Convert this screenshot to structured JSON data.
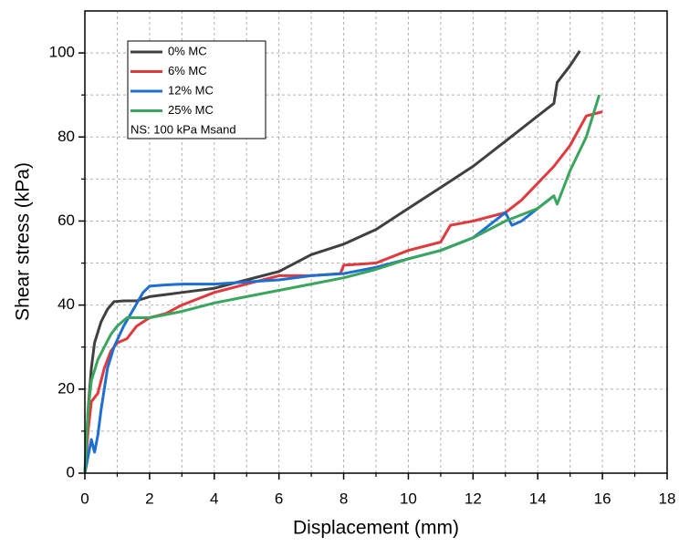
{
  "chart_data": {
    "type": "line",
    "xlabel": "Displacement (mm)",
    "ylabel": "Shear stress (kPa)",
    "xlim": [
      0,
      18
    ],
    "ylim": [
      0,
      110
    ],
    "xticks": [
      0,
      2,
      4,
      6,
      8,
      10,
      12,
      14,
      16,
      18
    ],
    "yticks": [
      0,
      20,
      40,
      60,
      80,
      100
    ],
    "xminorticks": [
      1,
      3,
      5,
      7,
      9,
      11,
      13,
      15,
      17
    ],
    "yminorticks": [
      10,
      30,
      50,
      70,
      90
    ],
    "grid": true,
    "legend": "upper left",
    "annotation": "NS: 100 kPa Msand",
    "series": [
      {
        "name": "0% MC",
        "color": "#404040",
        "x": [
          0,
          0.1,
          0.2,
          0.3,
          0.5,
          0.7,
          0.9,
          1.2,
          1.6,
          2,
          2.5,
          3,
          4,
          5,
          6,
          7,
          8,
          9,
          10,
          11,
          12,
          13,
          14,
          14.5,
          14.6,
          15,
          15.3
        ],
        "values": [
          0,
          15,
          25,
          31,
          36,
          39,
          40.8,
          41,
          41,
          42,
          42.5,
          43,
          44,
          46,
          48,
          52,
          54.5,
          58,
          63,
          68,
          73,
          79,
          85,
          88,
          93,
          97,
          100.5
        ]
      },
      {
        "name": "6% MC",
        "color": "#e0393e",
        "x": [
          0,
          0.1,
          0.2,
          0.4,
          0.6,
          0.8,
          1,
          1.3,
          1.6,
          1.8,
          2,
          2.5,
          3,
          4,
          5,
          6,
          7,
          7.9,
          8,
          9,
          10,
          11,
          11.3,
          12,
          13,
          13.5,
          14,
          14.5,
          15,
          15.5,
          16
        ],
        "values": [
          0,
          10,
          17,
          19,
          25,
          29,
          31,
          32,
          35,
          36,
          37,
          38,
          40,
          43,
          45,
          47,
          47,
          47.5,
          49.5,
          50,
          53,
          55,
          59,
          60,
          62,
          65,
          69,
          73,
          78,
          85,
          86
        ]
      },
      {
        "name": "12% MC",
        "color": "#1f6fd1",
        "x": [
          0,
          0.2,
          0.3,
          0.4,
          0.5,
          0.7,
          0.9,
          1.2,
          1.5,
          1.8,
          2,
          2.5,
          3,
          4,
          5,
          6,
          7,
          8,
          9,
          10,
          11,
          12,
          13,
          13.2,
          13.5,
          14,
          14.5
        ],
        "values": [
          0,
          8,
          5,
          9,
          15,
          25,
          30,
          35,
          39,
          43,
          44.5,
          44.8,
          45,
          45,
          45.5,
          46,
          47,
          47.5,
          49,
          51,
          53,
          56,
          62,
          59,
          60,
          63,
          66
        ]
      },
      {
        "name": "25% MC",
        "color": "#3aa55d",
        "x": [
          0,
          0.1,
          0.2,
          0.4,
          0.6,
          0.8,
          1,
          1.3,
          1.6,
          2,
          3,
          4,
          5,
          6,
          7,
          8,
          9,
          10,
          11,
          12,
          13,
          14,
          14.5,
          14.6,
          15,
          15.5,
          15.9
        ],
        "values": [
          0,
          15,
          22,
          27,
          30,
          33,
          35,
          37,
          37,
          37,
          38.5,
          40.5,
          42,
          43.5,
          45,
          46.5,
          48.5,
          51,
          53,
          56,
          60,
          63,
          66,
          64,
          72,
          80,
          90
        ]
      }
    ]
  }
}
